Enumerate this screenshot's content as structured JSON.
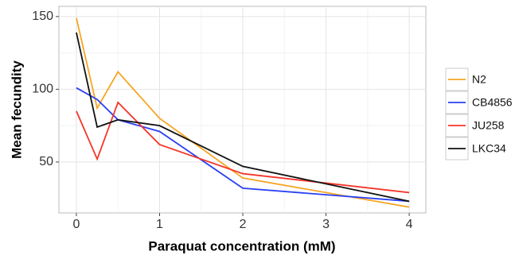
{
  "chart_data": {
    "type": "line",
    "x_label": "Paraquat concentration (mM)",
    "y_label": "Mean fecundity",
    "x": [
      0,
      0.25,
      0.5,
      1,
      2,
      4
    ],
    "series": [
      {
        "name": "N2",
        "color": "#f5a623",
        "values": [
          149,
          87,
          112,
          80,
          39,
          19
        ]
      },
      {
        "name": "CB4856",
        "color": "#2a3ff5",
        "values": [
          101,
          93,
          79,
          71,
          32,
          23
        ]
      },
      {
        "name": "JU258",
        "color": "#f5352a",
        "values": [
          85,
          52,
          91,
          62,
          42,
          29
        ]
      },
      {
        "name": "LKC34",
        "color": "#111111",
        "values": [
          139,
          74,
          79,
          75,
          47,
          23
        ]
      }
    ],
    "xlim": [
      -0.21,
      4.2
    ],
    "ylim": [
      15,
      157
    ],
    "xticks": [
      0,
      1,
      2,
      3,
      4
    ],
    "yticks": [
      50,
      100,
      150
    ],
    "grid": true,
    "legend": "right"
  }
}
